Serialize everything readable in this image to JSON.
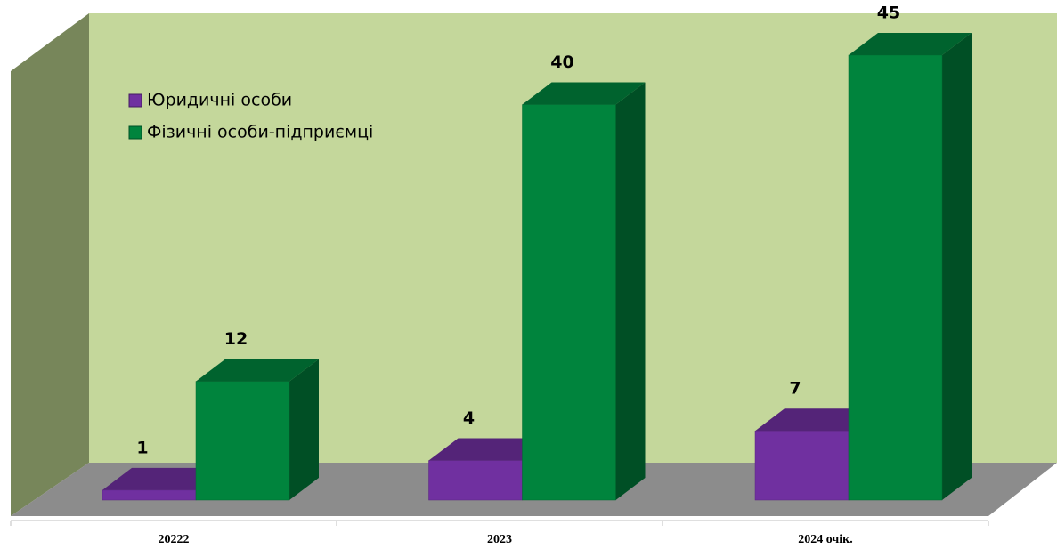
{
  "chart_data": {
    "type": "bar3d",
    "categories": [
      "20222",
      "2023",
      "2024 очік."
    ],
    "series": [
      {
        "name": "Юридичні особи",
        "color": "#7030a0",
        "values": [
          1,
          4,
          7
        ]
      },
      {
        "name": "Фізичні особи-підприємці",
        "color": "#00843d",
        "values": [
          12,
          40,
          45
        ]
      }
    ]
  }
}
